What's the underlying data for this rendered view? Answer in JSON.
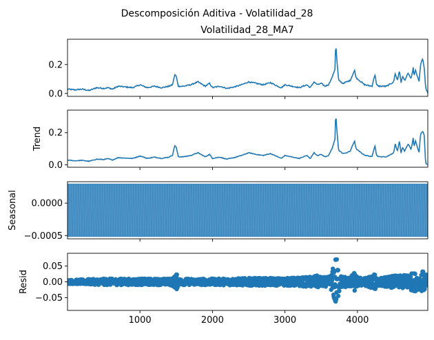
{
  "figure": {
    "suptitle": "Descomposición Aditiva - Volatilidad_28",
    "subtitle": "Volatilidad_28_MA7"
  },
  "colors": {
    "line": "#1f77b4",
    "axes": "#000000",
    "background": "#ffffff"
  },
  "chart_data": [
    {
      "type": "line",
      "title": "Volatilidad_28_MA7",
      "ylabel": "",
      "xlim": [
        1,
        4970
      ],
      "ylim": [
        -0.02,
        0.375
      ],
      "yticks": [
        0.0,
        0.2
      ],
      "ytick_labels": [
        "0.0",
        "0.2"
      ],
      "xticks": [
        1000,
        2000,
        3000,
        4000
      ],
      "show_xtick_labels": false,
      "grid": false,
      "series": [
        {
          "x": [
            1,
            100,
            200,
            300,
            400,
            500,
            560,
            620,
            700,
            800,
            900,
            1000,
            1050,
            1100,
            1200,
            1300,
            1400,
            1450,
            1480,
            1500,
            1530,
            1600,
            1700,
            1800,
            1900,
            1960,
            2000,
            2100,
            2200,
            2300,
            2400,
            2500,
            2600,
            2700,
            2800,
            2900,
            2950,
            3000,
            3100,
            3200,
            3300,
            3350,
            3400,
            3450,
            3500,
            3550,
            3600,
            3650,
            3690,
            3700,
            3710,
            3740,
            3800,
            3850,
            3900,
            3960,
            3980,
            4050,
            4100,
            4200,
            4240,
            4250,
            4260,
            4300,
            4400,
            4500,
            4520,
            4550,
            4580,
            4600,
            4620,
            4650,
            4700,
            4740,
            4770,
            4780,
            4800,
            4850,
            4870,
            4900,
            4920,
            4940,
            4970
          ],
          "y": [
            0.03,
            0.025,
            0.03,
            0.02,
            0.04,
            0.035,
            0.04,
            0.03,
            0.05,
            0.045,
            0.04,
            0.06,
            0.05,
            0.04,
            0.05,
            0.04,
            0.05,
            0.06,
            0.13,
            0.12,
            0.05,
            0.05,
            0.06,
            0.08,
            0.05,
            0.07,
            0.04,
            0.05,
            0.035,
            0.045,
            0.06,
            0.08,
            0.07,
            0.06,
            0.075,
            0.05,
            0.04,
            0.06,
            0.05,
            0.04,
            0.06,
            0.04,
            0.08,
            0.06,
            0.07,
            0.05,
            0.06,
            0.11,
            0.17,
            0.355,
            0.27,
            0.09,
            0.07,
            0.08,
            0.09,
            0.16,
            0.11,
            0.08,
            0.06,
            0.05,
            0.13,
            0.11,
            0.06,
            0.05,
            0.05,
            0.08,
            0.14,
            0.09,
            0.16,
            0.07,
            0.12,
            0.09,
            0.14,
            0.1,
            0.18,
            0.12,
            0.16,
            0.08,
            0.2,
            0.24,
            0.18,
            0.04,
            0.0
          ]
        }
      ]
    },
    {
      "type": "line",
      "title": "",
      "ylabel": "Trend",
      "xlim": [
        1,
        4970
      ],
      "ylim": [
        -0.015,
        0.34
      ],
      "yticks": [
        0.0,
        0.2
      ],
      "ytick_labels": [
        "0.0",
        "0.2"
      ],
      "xticks": [
        1000,
        2000,
        3000,
        4000
      ],
      "show_xtick_labels": false,
      "grid": false,
      "series": [
        {
          "x": [
            1,
            100,
            200,
            300,
            400,
            500,
            560,
            620,
            700,
            800,
            900,
            1000,
            1050,
            1100,
            1200,
            1300,
            1400,
            1450,
            1480,
            1500,
            1530,
            1600,
            1700,
            1800,
            1900,
            1960,
            2000,
            2100,
            2200,
            2300,
            2400,
            2500,
            2600,
            2700,
            2800,
            2900,
            2950,
            3000,
            3100,
            3200,
            3300,
            3350,
            3400,
            3450,
            3500,
            3550,
            3600,
            3650,
            3690,
            3700,
            3710,
            3740,
            3800,
            3850,
            3900,
            3960,
            3980,
            4050,
            4100,
            4200,
            4240,
            4250,
            4260,
            4300,
            4400,
            4500,
            4520,
            4550,
            4580,
            4600,
            4620,
            4650,
            4700,
            4740,
            4770,
            4780,
            4800,
            4850,
            4870,
            4900,
            4920,
            4940,
            4970
          ],
          "y": [
            0.03,
            0.025,
            0.028,
            0.022,
            0.035,
            0.033,
            0.038,
            0.03,
            0.045,
            0.042,
            0.04,
            0.055,
            0.048,
            0.04,
            0.048,
            0.04,
            0.048,
            0.06,
            0.12,
            0.11,
            0.05,
            0.05,
            0.058,
            0.075,
            0.05,
            0.065,
            0.04,
            0.048,
            0.035,
            0.045,
            0.058,
            0.075,
            0.065,
            0.058,
            0.07,
            0.05,
            0.04,
            0.058,
            0.048,
            0.04,
            0.058,
            0.04,
            0.075,
            0.058,
            0.065,
            0.05,
            0.058,
            0.1,
            0.16,
            0.325,
            0.25,
            0.09,
            0.07,
            0.075,
            0.085,
            0.15,
            0.1,
            0.075,
            0.06,
            0.05,
            0.12,
            0.1,
            0.06,
            0.05,
            0.05,
            0.075,
            0.13,
            0.085,
            0.15,
            0.07,
            0.11,
            0.085,
            0.13,
            0.095,
            0.17,
            0.11,
            0.15,
            0.075,
            0.19,
            0.21,
            0.19,
            0.01,
            0.003
          ]
        }
      ]
    },
    {
      "type": "line",
      "title": "",
      "ylabel": "Seasonal",
      "xlim": [
        1,
        4970
      ],
      "ylim": [
        -0.00055,
        0.00033
      ],
      "yticks": [
        -0.0005,
        0.0
      ],
      "ytick_labels": [
        "−0.0005",
        "0.0000"
      ],
      "xticks": [
        1000,
        2000,
        3000,
        4000
      ],
      "show_xtick_labels": false,
      "grid": false,
      "series": [
        {
          "pattern": "periodic",
          "min": -0.00052,
          "max": 0.0003,
          "cycles": 150
        }
      ]
    },
    {
      "type": "scatter",
      "title": "",
      "ylabel": "Resid",
      "xlim": [
        1,
        4970
      ],
      "ylim": [
        -0.09,
        0.09
      ],
      "yticks": [
        -0.05,
        0.0,
        0.05
      ],
      "ytick_labels": [
        "−0.05",
        "0.00",
        "0.05"
      ],
      "xticks": [
        1000,
        2000,
        3000,
        4000
      ],
      "xtick_labels": [
        "1000",
        "2000",
        "3000",
        "4000"
      ],
      "show_xtick_labels": true,
      "grid": false,
      "series": [
        {
          "x": [
            1,
            500,
            1000,
            1400,
            1470,
            1500,
            1530,
            2000,
            2500,
            3000,
            3300,
            3450,
            3500,
            3600,
            3650,
            3700,
            3720,
            3760,
            3900,
            3960,
            4000,
            4100,
            4250,
            4300,
            4500,
            4600,
            4700,
            4800,
            4850,
            4900,
            4960,
            4970
          ],
          "spread": [
            0.006,
            0.01,
            0.01,
            0.01,
            0.015,
            0.03,
            0.01,
            0.01,
            0.012,
            0.012,
            0.015,
            0.02,
            0.015,
            0.015,
            0.03,
            0.09,
            0.07,
            0.02,
            0.015,
            0.03,
            0.015,
            0.012,
            0.025,
            0.012,
            0.02,
            0.02,
            0.025,
            0.03,
            0.02,
            0.035,
            0.02,
            0.01
          ]
        }
      ]
    }
  ]
}
